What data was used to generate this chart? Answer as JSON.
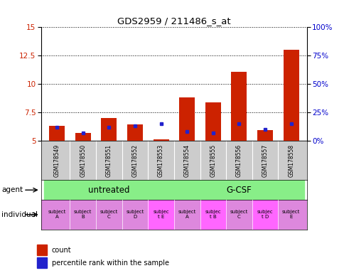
{
  "title": "GDS2959 / 211486_s_at",
  "samples": [
    "GSM178549",
    "GSM178550",
    "GSM178551",
    "GSM178552",
    "GSM178553",
    "GSM178554",
    "GSM178555",
    "GSM178556",
    "GSM178557",
    "GSM178558"
  ],
  "count_values": [
    6.3,
    5.7,
    7.0,
    6.4,
    5.1,
    8.8,
    8.4,
    11.1,
    5.9,
    13.0
  ],
  "percentile_values": [
    6.2,
    5.7,
    6.2,
    6.3,
    6.5,
    5.8,
    5.7,
    6.5,
    6.0,
    6.5
  ],
  "ymin": 5.0,
  "ymax": 15.0,
  "yticks": [
    5.0,
    7.5,
    10.0,
    12.5,
    15.0
  ],
  "y2ticks_right": [
    0,
    25,
    50,
    75,
    100
  ],
  "bar_color": "#cc2200",
  "blue_color": "#2222cc",
  "agent_untreated_indices": [
    0,
    1,
    2,
    3,
    4
  ],
  "agent_gcsf_indices": [
    5,
    6,
    7,
    8,
    9
  ],
  "agent_untreated_label": "untreated",
  "agent_gcsf_label": "G-CSF",
  "individual_labels": [
    "subject\nA",
    "subject\nB",
    "subject\nC",
    "subject\nD",
    "subjec\nt E",
    "subject\nA",
    "subjec\nt B",
    "subject\nC",
    "subjec\nt D",
    "subject\nE"
  ],
  "individual_highlight": [
    4,
    6,
    8
  ],
  "agent_bg_color": "#88ee88",
  "individual_bg_color": "#dd88dd",
  "individual_highlight_color": "#ff66ff",
  "xlabel_color": "#cc2200",
  "ylabel_right_color": "#0000cc"
}
